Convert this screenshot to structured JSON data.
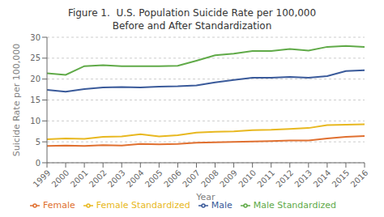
{
  "chart_data": {
    "type": "line",
    "title": "Figure 1.  U.S. Population Suicide Rate per 100,000",
    "subtitle": "Before and After Standardization",
    "x_label": "Year",
    "y_label": "Suicide Rate per 100,000",
    "x": [
      1999,
      2000,
      2001,
      2002,
      2003,
      2004,
      2005,
      2006,
      2007,
      2008,
      2009,
      2010,
      2011,
      2012,
      2013,
      2014,
      2015,
      2016
    ],
    "xlim": [
      1999,
      2016
    ],
    "xticks": [
      1999,
      2000,
      2001,
      2002,
      2003,
      2004,
      2005,
      2006,
      2007,
      2008,
      2009,
      2010,
      2011,
      2012,
      2013,
      2014,
      2015,
      2016
    ],
    "ylim": [
      0,
      30
    ],
    "yticks": [
      0,
      5,
      10,
      15,
      20,
      25,
      30
    ],
    "grid": true,
    "legend": "bottom",
    "series": [
      {
        "name": "Female",
        "color": "#e07030",
        "values": [
          4.0,
          4.1,
          4.0,
          4.2,
          4.1,
          4.5,
          4.4,
          4.5,
          4.8,
          4.9,
          5.0,
          5.1,
          5.2,
          5.3,
          5.3,
          5.8,
          6.2,
          6.4
        ]
      },
      {
        "name": "Female Standardized",
        "color": "#e8b820",
        "values": [
          5.6,
          5.8,
          5.7,
          6.2,
          6.3,
          6.8,
          6.3,
          6.6,
          7.2,
          7.4,
          7.5,
          7.8,
          7.9,
          8.1,
          8.3,
          9.0,
          9.1,
          9.2
        ]
      },
      {
        "name": "Male",
        "color": "#3a5a9a",
        "values": [
          17.4,
          17.0,
          17.6,
          18.0,
          18.1,
          18.0,
          18.2,
          18.3,
          18.5,
          19.2,
          19.8,
          20.3,
          20.3,
          20.5,
          20.3,
          20.7,
          21.9,
          22.1
        ]
      },
      {
        "name": "Male Standardized",
        "color": "#60aa48",
        "values": [
          21.4,
          21.0,
          23.1,
          23.3,
          23.1,
          23.1,
          23.1,
          23.2,
          24.4,
          25.7,
          26.1,
          26.7,
          26.7,
          27.2,
          26.8,
          27.7,
          27.9,
          27.7
        ]
      }
    ]
  }
}
